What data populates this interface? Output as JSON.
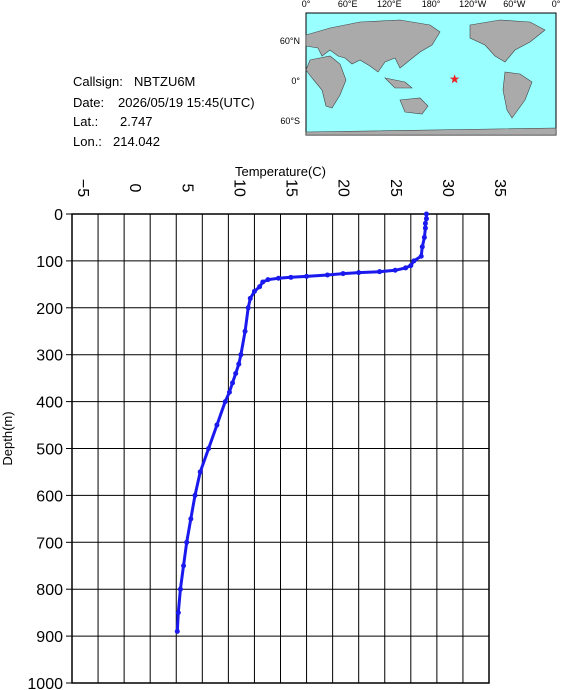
{
  "info": {
    "callsign_label": "Callsign:",
    "callsign": "NBTZU6M",
    "date_label": "Date:",
    "date": "2026/05/19 15:45(UTC)",
    "lat_label": "Lat.:",
    "lat": 2.747,
    "lon_label": "Lon.:",
    "lon": 214.042
  },
  "map": {
    "lon_labels": [
      "0°",
      "60°E",
      "120°E",
      "180°",
      "120°W",
      "60°W",
      "0°"
    ],
    "lat_labels": [
      "60°N",
      "0°",
      "60°S"
    ]
  },
  "chart_data": {
    "type": "profile",
    "xlabel": "Temperature(C)",
    "ylabel": "Depth(m)",
    "xlim": [
      -5,
      35
    ],
    "xticks": [
      {
        "value": -5,
        "label": "−5"
      },
      0,
      5,
      10,
      15,
      20,
      25,
      30,
      35
    ],
    "x_minor_ticks": [
      -2.5,
      2.5,
      7.5,
      12.5,
      17.5,
      22.5,
      27.5,
      32.5
    ],
    "ylim": [
      0,
      1000
    ],
    "yticks": [
      0,
      100,
      200,
      300,
      400,
      500,
      600,
      700,
      800,
      900,
      1000
    ],
    "y_inverted": true,
    "grid": true,
    "color": "#1a1aee",
    "depth": [
      0,
      10,
      20,
      30,
      50,
      70,
      90,
      100,
      110,
      115,
      120,
      123,
      125,
      127,
      130,
      133,
      135,
      137,
      140,
      145,
      155,
      165,
      180,
      200,
      250,
      300,
      320,
      340,
      360,
      380,
      400,
      450,
      500,
      550,
      600,
      650,
      700,
      750,
      800,
      850,
      890
    ],
    "temperature": [
      29.0,
      29.0,
      28.9,
      28.9,
      28.8,
      28.6,
      28.5,
      27.8,
      27.5,
      27.0,
      26.0,
      24.5,
      22.5,
      21.0,
      19.5,
      17.5,
      16.0,
      14.8,
      13.8,
      13.3,
      13.0,
      12.5,
      12.1,
      11.9,
      11.6,
      11.2,
      11.0,
      10.7,
      10.4,
      10.1,
      9.7,
      8.9,
      8.1,
      7.3,
      6.8,
      6.4,
      6.0,
      5.7,
      5.4,
      5.2,
      5.1
    ]
  }
}
